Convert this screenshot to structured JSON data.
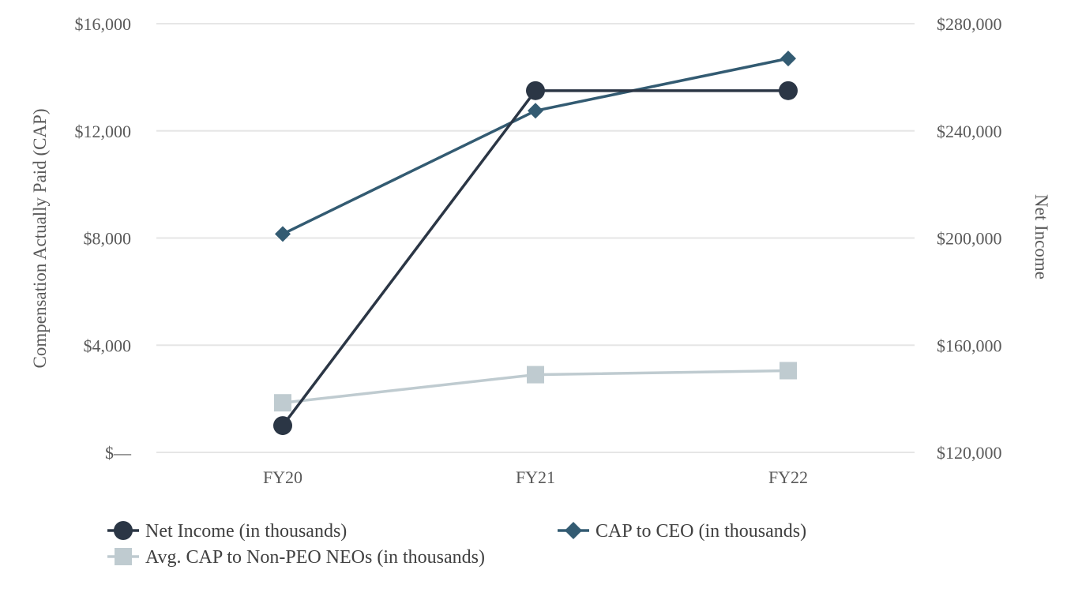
{
  "chart_data": {
    "type": "line",
    "categories": [
      "FY20",
      "FY21",
      "FY22"
    ],
    "left_axis": {
      "title": "Compensation Actually Paid (CAP)",
      "ylim": [
        0,
        16000
      ],
      "ticks": [
        0,
        4000,
        8000,
        12000,
        16000
      ],
      "tick_labels": [
        "$—",
        "$4,000",
        "$8,000",
        "$12,000",
        "$16,000"
      ]
    },
    "right_axis": {
      "title": "Net Income",
      "ylim": [
        120000,
        280000
      ],
      "ticks": [
        120000,
        160000,
        200000,
        240000,
        280000
      ],
      "tick_labels": [
        "$120,000",
        "$160,000",
        "$200,000",
        "$240,000",
        "$280,000"
      ]
    },
    "series": [
      {
        "name": "Net Income (in thousands)",
        "axis": "right",
        "marker": "circle",
        "color": "#2b3645",
        "values": [
          130000,
          255000,
          255000
        ]
      },
      {
        "name": "CAP to CEO (in thousands)",
        "axis": "left",
        "marker": "diamond",
        "color": "#335b72",
        "values": [
          8150,
          12750,
          14700
        ]
      },
      {
        "name": "Avg. CAP to Non-PEO NEOs (in thousands)",
        "axis": "left",
        "marker": "square",
        "color": "#bfcbd0",
        "values": [
          1850,
          2900,
          3050
        ]
      }
    ],
    "grid": true,
    "gridline_color": "#e6e6e6",
    "legend_position": "bottom-left"
  }
}
